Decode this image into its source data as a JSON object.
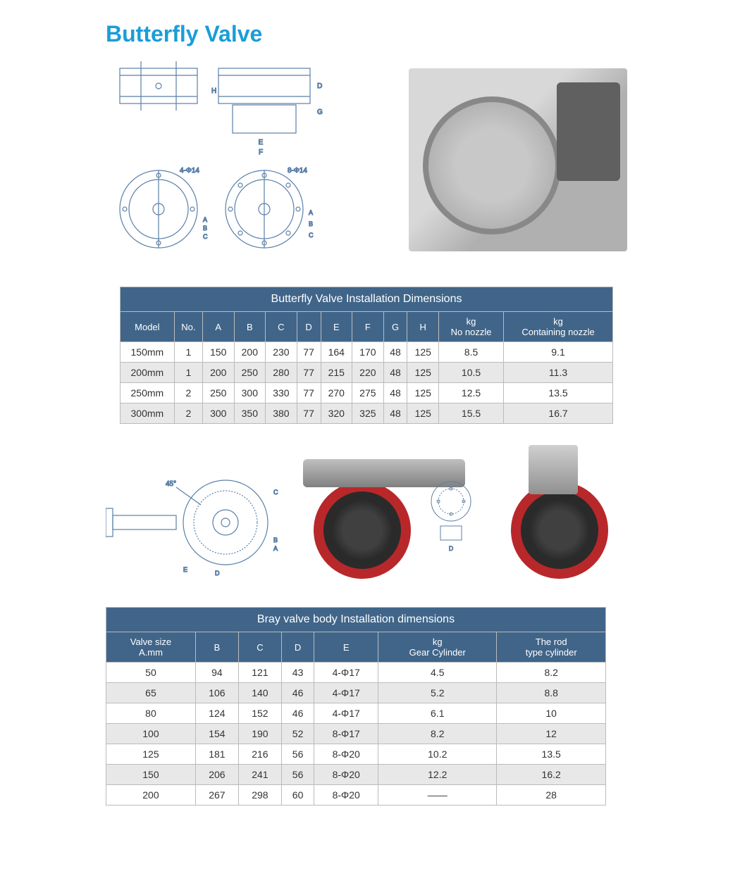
{
  "page": {
    "title": "Butterfly Valve",
    "title_color": "#1a9dd9"
  },
  "diagram_labels": {
    "hole_4": "4-Φ14",
    "hole_8": "8-Φ14",
    "dims": [
      "A",
      "B",
      "C",
      "D",
      "E",
      "F",
      "G",
      "H"
    ],
    "angle": "45°"
  },
  "table1": {
    "title": "Butterfly Valve Installation Dimensions",
    "columns": [
      "Model",
      "No.",
      "A",
      "B",
      "C",
      "D",
      "E",
      "F",
      "G",
      "H",
      "kg\nNo nozzle",
      "kg\nContaining nozzle"
    ],
    "rows": [
      [
        "150mm",
        "1",
        "150",
        "200",
        "230",
        "77",
        "164",
        "170",
        "48",
        "125",
        "8.5",
        "9.1"
      ],
      [
        "200mm",
        "1",
        "200",
        "250",
        "280",
        "77",
        "215",
        "220",
        "48",
        "125",
        "10.5",
        "11.3"
      ],
      [
        "250mm",
        "2",
        "250",
        "300",
        "330",
        "77",
        "270",
        "275",
        "48",
        "125",
        "12.5",
        "13.5"
      ],
      [
        "300mm",
        "2",
        "300",
        "350",
        "380",
        "77",
        "320",
        "325",
        "48",
        "125",
        "15.5",
        "16.7"
      ]
    ],
    "header_bg": "#406589",
    "header_fg": "#ffffff",
    "row_alt_bg": "#e8e8e8",
    "border_color": "#bbbbbb"
  },
  "table2": {
    "title": "Bray valve body Installation dimensions",
    "columns": [
      "Valve size\nA.mm",
      "B",
      "C",
      "D",
      "E",
      "kg\nGear Cylinder",
      "The rod\ntype cylinder"
    ],
    "rows": [
      [
        "50",
        "94",
        "121",
        "43",
        "4-Φ17",
        "4.5",
        "8.2"
      ],
      [
        "65",
        "106",
        "140",
        "46",
        "4-Φ17",
        "5.2",
        "8.8"
      ],
      [
        "80",
        "124",
        "152",
        "46",
        "4-Φ17",
        "6.1",
        "10"
      ],
      [
        "100",
        "154",
        "190",
        "52",
        "8-Φ17",
        "8.2",
        "12"
      ],
      [
        "125",
        "181",
        "216",
        "56",
        "8-Φ20",
        "10.2",
        "13.5"
      ],
      [
        "150",
        "206",
        "241",
        "56",
        "8-Φ20",
        "12.2",
        "16.2"
      ],
      [
        "200",
        "267",
        "298",
        "60",
        "8-Φ20",
        "——",
        "28"
      ]
    ],
    "header_bg": "#406589",
    "header_fg": "#ffffff",
    "row_alt_bg": "#e8e8e8",
    "border_color": "#bbbbbb"
  },
  "colors": {
    "diagram_stroke": "#5a7fa8",
    "valve_red": "#b8282a",
    "valve_grey": "#808080"
  }
}
